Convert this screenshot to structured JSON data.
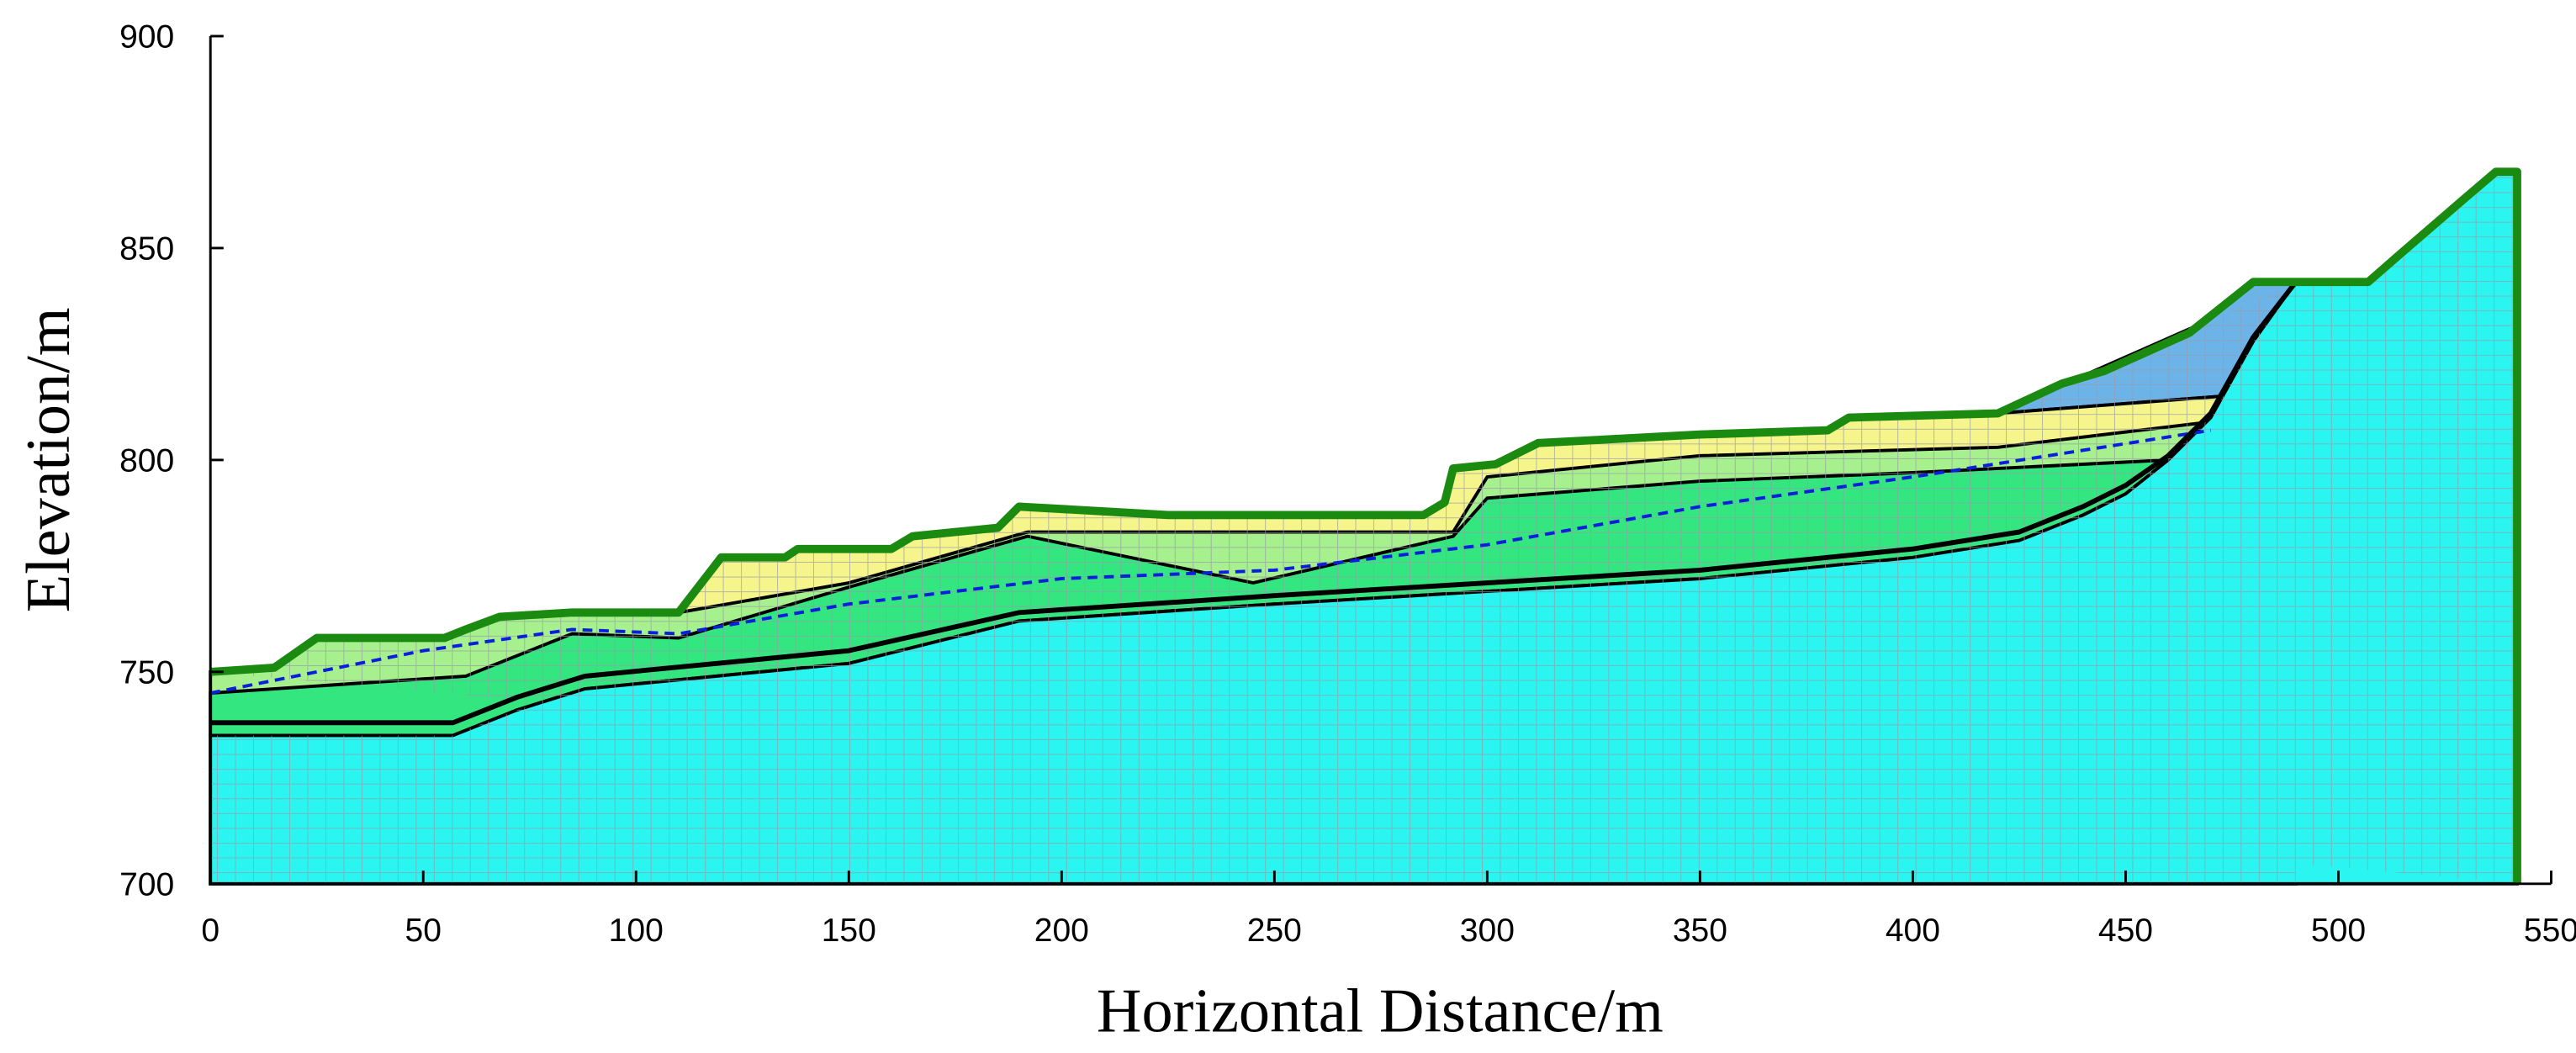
{
  "chart_data": {
    "type": "profile",
    "xlabel": "Horizontal Distance/m",
    "ylabel": "Elevation/m",
    "xlim": [
      0,
      550
    ],
    "ylim": [
      700,
      900
    ],
    "xticks": [
      0,
      50,
      100,
      150,
      200,
      250,
      300,
      350,
      400,
      450,
      500,
      550
    ],
    "yticks": [
      700,
      750,
      800,
      850,
      900
    ],
    "mesh": true,
    "layers": [
      {
        "color": "#a6f08e",
        "x": [
          0,
          15,
          25,
          55,
          60,
          68,
          85,
          110,
          120,
          135,
          138,
          160,
          165,
          185,
          190,
          225,
          285,
          290,
          292,
          302,
          312,
          350,
          380,
          385,
          420,
          490,
          490,
          0
        ],
        "y": [
          750,
          751,
          758,
          758,
          760,
          763,
          764,
          764,
          777,
          777,
          779,
          779,
          782,
          784,
          789,
          787,
          787,
          790,
          798,
          799,
          804,
          806,
          807,
          810,
          811,
          842,
          700,
          700
        ]
      },
      {
        "color": "#6cb4e8",
        "x": [
          420,
          435,
          445,
          465,
          480,
          490,
          472
        ],
        "y": [
          811,
          818,
          821,
          830,
          842,
          842,
          815
        ]
      },
      {
        "color": "#f5f58c",
        "x": [
          110,
          120,
          135,
          138,
          160,
          165,
          185,
          190,
          225,
          285,
          290,
          292,
          302,
          312,
          350,
          380,
          385,
          420,
          472,
          470,
          420,
          350,
          300,
          292,
          192,
          150
        ],
        "y": [
          764,
          777,
          777,
          779,
          779,
          782,
          784,
          789,
          787,
          787,
          790,
          798,
          799,
          804,
          806,
          807,
          810,
          811,
          815,
          809,
          803,
          801,
          796,
          783,
          783,
          771
        ]
      },
      {
        "color": "#33e680",
        "x": [
          0,
          60,
          85,
          110,
          150,
          192,
          245,
          292,
          300,
          350,
          400,
          460,
          450,
          440,
          425,
          400,
          350,
          300,
          250,
          190,
          150,
          88,
          72,
          57,
          0
        ],
        "y": [
          745,
          749,
          759,
          758,
          770,
          782,
          771,
          782,
          791,
          795,
          797,
          800,
          792,
          787,
          781,
          777,
          772,
          769,
          766,
          762,
          752,
          746,
          741,
          735,
          735
        ]
      },
      {
        "color": "#2af5f0",
        "x": [
          0,
          0,
          57,
          72,
          88,
          150,
          190,
          250,
          300,
          350,
          400,
          425,
          440,
          450,
          460,
          470,
          480,
          490,
          507,
          515,
          530,
          537,
          542,
          542
        ],
        "y": [
          700,
          735,
          735,
          741,
          746,
          752,
          762,
          766,
          769,
          772,
          777,
          781,
          787,
          792,
          800,
          810,
          828,
          842,
          842,
          849,
          862,
          868,
          868,
          700
        ]
      }
    ],
    "lines": [
      {
        "color": "#0a1edc",
        "dash": true,
        "width": 2,
        "x": [
          0,
          50,
          85,
          110,
          150,
          200,
          250,
          300,
          350,
          400,
          470
        ],
        "y": [
          745,
          755,
          760,
          759,
          766,
          772,
          774,
          780,
          789,
          796,
          807
        ]
      },
      {
        "color": "#000000",
        "dash": false,
        "width": 3,
        "x": [
          0,
          57,
          72,
          88,
          150,
          190,
          250,
          300,
          350,
          400,
          425,
          440,
          450,
          460,
          470,
          480,
          490
        ],
        "y": [
          738,
          738,
          744,
          749,
          755,
          764,
          768,
          771,
          774,
          779,
          783,
          789,
          794,
          801,
          811,
          829,
          842
        ]
      },
      {
        "color": "#1a8a10",
        "dash": false,
        "width": 5,
        "x": [
          0,
          15,
          25,
          55,
          60,
          68,
          85,
          110,
          120,
          135,
          138,
          160,
          165,
          185,
          190,
          225,
          285,
          290,
          292,
          302,
          312,
          350,
          380,
          385,
          420,
          435,
          445,
          465,
          480,
          507,
          515,
          530,
          537,
          542,
          542
        ],
        "y": [
          750,
          751,
          758,
          758,
          760,
          763,
          764,
          764,
          777,
          777,
          779,
          779,
          782,
          784,
          789,
          787,
          787,
          790,
          798,
          799,
          804,
          806,
          807,
          810,
          811,
          818,
          821,
          830,
          842,
          842,
          849,
          862,
          868,
          868,
          700
        ]
      }
    ]
  }
}
